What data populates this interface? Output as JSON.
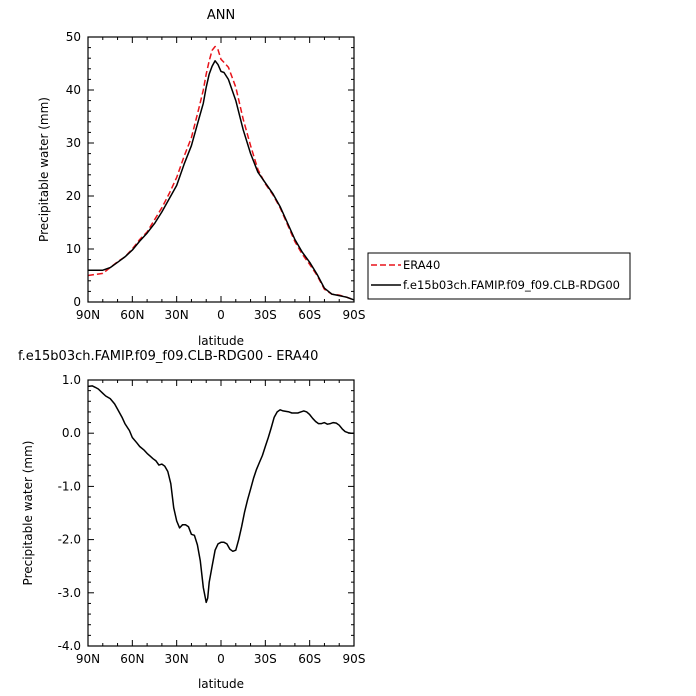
{
  "chart_data": [
    {
      "type": "line",
      "title": "ANN",
      "xlabel": "latitude",
      "ylabel": "Precipitable water (mm)",
      "xlim": [
        90,
        -90
      ],
      "ylim": [
        0,
        50
      ],
      "x_ticks": [
        90,
        60,
        30,
        0,
        -30,
        -60,
        -90
      ],
      "x_tick_labels": [
        "90N",
        "60N",
        "30N",
        "0",
        "30S",
        "60S",
        "90S"
      ],
      "y_ticks": [
        0,
        10,
        20,
        30,
        40,
        50
      ],
      "y_tick_labels": [
        "0",
        "10",
        "20",
        "30",
        "40",
        "50"
      ],
      "legend": "outside-right",
      "grid": false,
      "series": [
        {
          "name": "ERA40",
          "color": "#e8141b",
          "dash": "dashed",
          "x": [
            90,
            85,
            80,
            75,
            70,
            65,
            60,
            55,
            50,
            45,
            40,
            35,
            30,
            25,
            20,
            15,
            12,
            10,
            8,
            6,
            4,
            2,
            0,
            -2,
            -5,
            -10,
            -15,
            -20,
            -25,
            -30,
            -35,
            -40,
            -45,
            -50,
            -55,
            -60,
            -65,
            -70,
            -75,
            -80,
            -85,
            -90
          ],
          "values": [
            5.0,
            5.2,
            5.4,
            6.5,
            7.6,
            8.5,
            10.0,
            11.8,
            13.2,
            15.5,
            17.8,
            20.5,
            23.5,
            27.5,
            31.0,
            36.5,
            40.0,
            43.0,
            45.5,
            47.5,
            48.2,
            47.6,
            45.8,
            45.2,
            44.3,
            40.5,
            34.5,
            29.5,
            25.0,
            22.3,
            20.3,
            17.8,
            14.6,
            11.4,
            9.0,
            7.1,
            5.0,
            2.4,
            1.5,
            1.3,
            0.9,
            0.4
          ]
        },
        {
          "name": "f.e15b03ch.FAMIP.f09_f09.CLB-RDG00",
          "color": "#000000",
          "dash": "solid",
          "x": [
            90,
            85,
            80,
            75,
            70,
            65,
            60,
            55,
            50,
            45,
            40,
            35,
            30,
            25,
            20,
            15,
            12,
            10,
            8,
            6,
            4,
            2,
            0,
            -2,
            -5,
            -10,
            -15,
            -20,
            -25,
            -30,
            -35,
            -40,
            -45,
            -50,
            -55,
            -60,
            -65,
            -70,
            -75,
            -80,
            -85,
            -90
          ],
          "values": [
            6.0,
            6.0,
            6.0,
            6.5,
            7.5,
            8.5,
            9.8,
            11.5,
            13.0,
            14.8,
            17.0,
            19.5,
            22.0,
            26.0,
            29.5,
            34.5,
            37.5,
            40.5,
            43.0,
            44.5,
            45.5,
            44.8,
            43.5,
            43.3,
            42.0,
            38.0,
            32.5,
            28.0,
            24.5,
            22.5,
            20.5,
            18.0,
            14.9,
            11.8,
            9.4,
            7.5,
            5.2,
            2.6,
            1.5,
            1.2,
            0.9,
            0.4
          ]
        }
      ]
    },
    {
      "type": "line",
      "title": "f.e15b03ch.FAMIP.f09_f09.CLB-RDG00 - ERA40",
      "xlabel": "latitude",
      "ylabel": "Precipitable water (mm)",
      "xlim": [
        90,
        -90
      ],
      "ylim": [
        -4.0,
        1.0
      ],
      "x_ticks": [
        90,
        60,
        30,
        0,
        -30,
        -60,
        -90
      ],
      "x_tick_labels": [
        "90N",
        "60N",
        "30N",
        "0",
        "30S",
        "60S",
        "90S"
      ],
      "y_ticks": [
        1.0,
        0.0,
        -1.0,
        -2.0,
        -3.0,
        -4.0
      ],
      "y_tick_labels": [
        "1.0",
        "0.0",
        "-1.0",
        "-2.0",
        "-3.0",
        "-4.0"
      ],
      "grid": false,
      "series": [
        {
          "color": "#000000",
          "dash": "solid",
          "x": [
            90,
            87,
            85,
            83,
            80,
            78,
            75,
            72,
            70,
            67,
            65,
            62,
            60,
            57,
            55,
            52,
            50,
            48,
            46,
            44,
            42,
            40,
            38,
            36,
            34,
            32,
            30,
            28,
            26,
            24,
            22,
            20,
            18,
            16,
            14,
            12,
            10,
            9,
            8,
            6,
            4,
            2,
            0,
            -2,
            -4,
            -6,
            -8,
            -10,
            -12,
            -14,
            -16,
            -18,
            -20,
            -22,
            -24,
            -26,
            -28,
            -30,
            -32,
            -34,
            -36,
            -38,
            -40,
            -42,
            -44,
            -46,
            -48,
            -50,
            -52,
            -54,
            -56,
            -58,
            -60,
            -62,
            -64,
            -66,
            -68,
            -70,
            -72,
            -74,
            -76,
            -78,
            -80,
            -82,
            -84,
            -86,
            -88,
            -90
          ],
          "values": [
            0.88,
            0.89,
            0.86,
            0.83,
            0.75,
            0.7,
            0.65,
            0.55,
            0.45,
            0.3,
            0.18,
            0.05,
            -0.08,
            -0.18,
            -0.25,
            -0.32,
            -0.38,
            -0.43,
            -0.48,
            -0.52,
            -0.6,
            -0.58,
            -0.62,
            -0.72,
            -0.95,
            -1.4,
            -1.65,
            -1.78,
            -1.72,
            -1.72,
            -1.76,
            -1.9,
            -1.92,
            -2.1,
            -2.4,
            -2.9,
            -3.18,
            -3.1,
            -2.8,
            -2.5,
            -2.2,
            -2.08,
            -2.05,
            -2.05,
            -2.08,
            -2.18,
            -2.22,
            -2.2,
            -2.0,
            -1.75,
            -1.48,
            -1.25,
            -1.05,
            -0.85,
            -0.68,
            -0.55,
            -0.42,
            -0.25,
            -0.08,
            0.1,
            0.3,
            0.4,
            0.44,
            0.42,
            0.41,
            0.4,
            0.38,
            0.38,
            0.38,
            0.4,
            0.42,
            0.4,
            0.35,
            0.28,
            0.22,
            0.18,
            0.18,
            0.2,
            0.17,
            0.18,
            0.2,
            0.19,
            0.15,
            0.08,
            0.03,
            0.01,
            0.0,
            0.0
          ]
        }
      ]
    }
  ]
}
